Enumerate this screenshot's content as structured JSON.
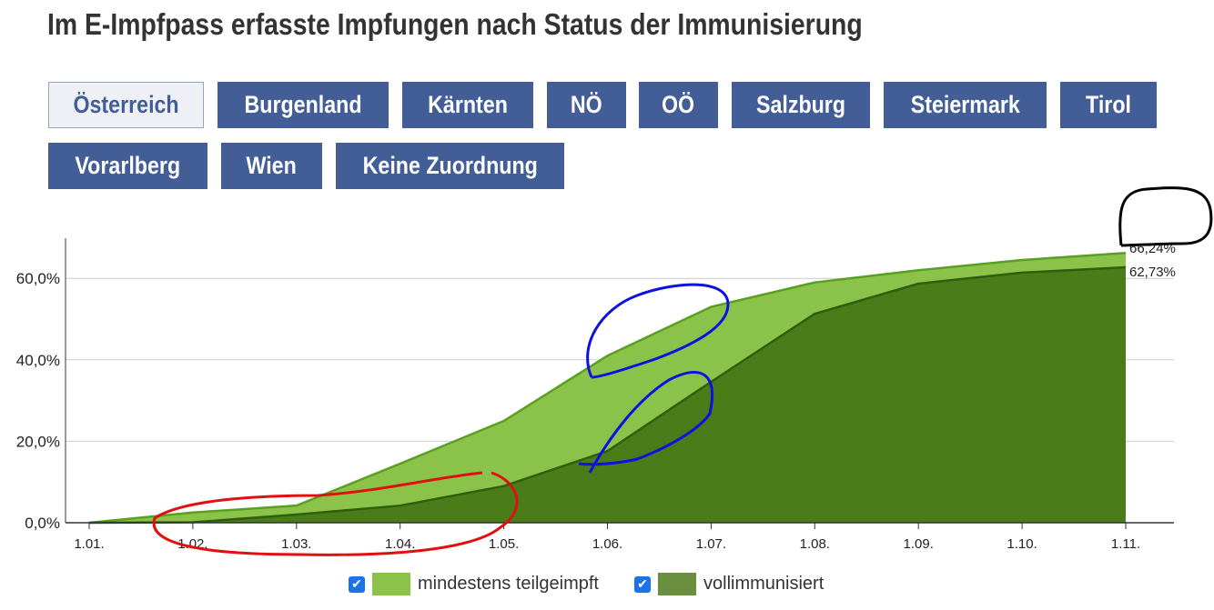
{
  "title": "Im E-Impfpass erfasste Impfungen nach Status der Immunisierung",
  "regions": [
    "Österreich",
    "Burgenland",
    "Kärnten",
    "NÖ",
    "OÖ",
    "Salzburg",
    "Steiermark",
    "Tirol",
    "Vorarlberg",
    "Wien",
    "Keine Zuordnung"
  ],
  "selected_region": "Österreich",
  "colors": {
    "button": "#435e97",
    "teil": "#8bc34a",
    "voll": "#4a7c1a",
    "teil_legend": "#8bc34a",
    "voll_legend": "#6a8f3f"
  },
  "chart_data": {
    "type": "area",
    "title": "Im E-Impfpass erfasste Impfungen nach Status der Immunisierung",
    "x": [
      "1.01.",
      "1.02.",
      "1.03.",
      "1.04.",
      "1.05.",
      "1.06.",
      "1.07.",
      "1.08.",
      "1.09.",
      "1.10.",
      "1.11."
    ],
    "ylim": [
      0,
      70
    ],
    "yticks": [
      "0,0%",
      "20,0%",
      "40,0%",
      "60,0%"
    ],
    "ytick_values": [
      0,
      20,
      40,
      60
    ],
    "series": [
      {
        "name": "mindestens teilgeimpft",
        "values": [
          0,
          2.5,
          4.2,
          14.5,
          25,
          41,
          53,
          59,
          62,
          64.5,
          66.24
        ],
        "end_label": "66,24%"
      },
      {
        "name": "vollimmunisiert",
        "values": [
          0,
          0.1,
          2,
          4.2,
          9,
          17.6,
          34.6,
          51.3,
          58.7,
          61.4,
          62.73
        ],
        "end_label": "62,73%"
      }
    ],
    "legend": "bottom"
  }
}
